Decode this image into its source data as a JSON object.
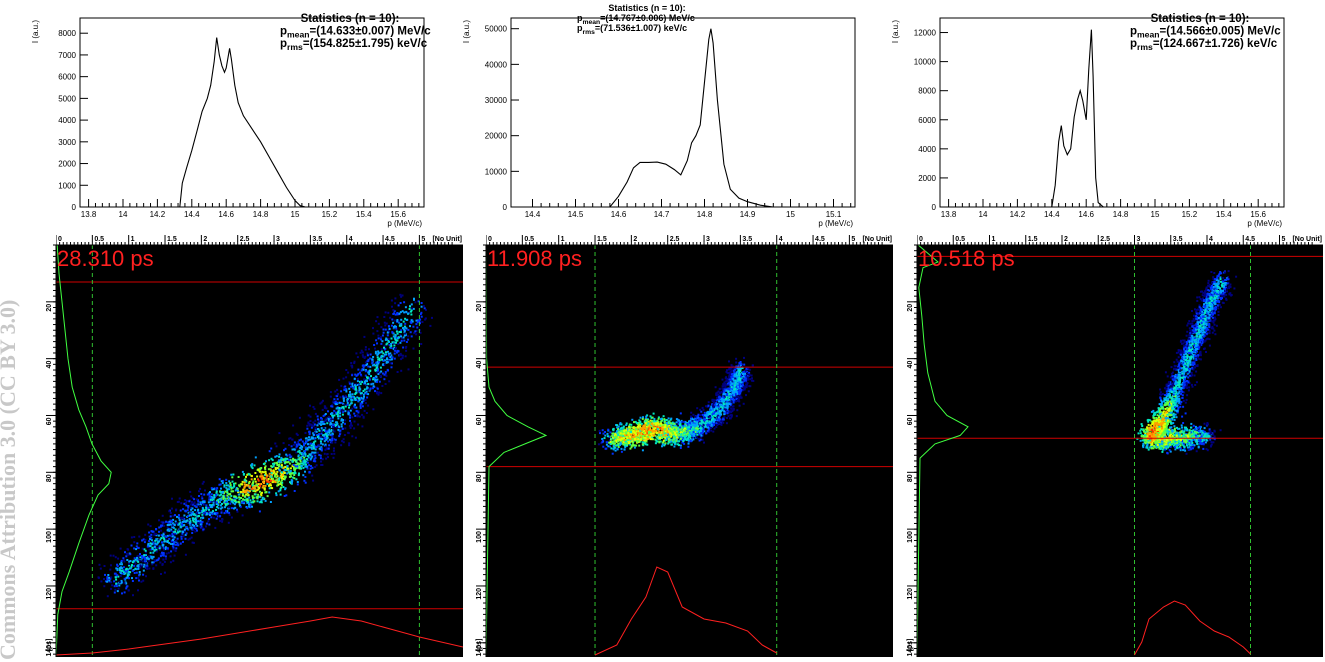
{
  "watermark": "Commons Attribution 3.0 (CC BY 3.0)",
  "chart_data": [
    {
      "type": "line",
      "panel": "top-1",
      "stats_title": "Statistics (n = 10):",
      "stats_mean": "=(14.633±0.007) MeV/c",
      "stats_rms": "=(154.825±1.795) keV/c",
      "xlabel": "p (MeV/c)",
      "ylabel": "I (a.u.)",
      "xlim": [
        13.75,
        15.75
      ],
      "ylim": [
        0,
        8700
      ],
      "xticks": [
        "13.8",
        "14",
        "14.2",
        "14.4",
        "14.6",
        "14.8",
        "15",
        "15.2",
        "15.4",
        "15.6"
      ],
      "yticks": [
        "1000",
        "2000",
        "3000",
        "4000",
        "5000",
        "6000",
        "7000",
        "8000"
      ],
      "series": [
        {
          "x": [
            14.33,
            14.345,
            14.37,
            14.4,
            14.43,
            14.46,
            14.49,
            14.51,
            14.53,
            14.545,
            14.56,
            14.575,
            14.59,
            14.6,
            14.62,
            14.63,
            14.65,
            14.67,
            14.7,
            14.75,
            14.8,
            14.85,
            14.9,
            14.95,
            15.0,
            15.03,
            15.06
          ],
          "y": [
            0,
            1100,
            1800,
            2600,
            3500,
            4400,
            5000,
            5600,
            6700,
            7800,
            7000,
            6500,
            6200,
            6400,
            7300,
            6800,
            5600,
            4800,
            4200,
            3600,
            3000,
            2300,
            1600,
            900,
            300,
            60,
            0
          ]
        }
      ]
    },
    {
      "type": "line",
      "panel": "top-2",
      "stats_title": "Statistics (n = 10):",
      "stats_mean": "=(14.767±0.006) MeV/c",
      "stats_rms": "=(71.536±1.007) keV/c",
      "xlabel": "p (MeV/c)",
      "ylabel": "I (a.u.)",
      "xlim": [
        14.35,
        15.15
      ],
      "ylim": [
        0,
        53000
      ],
      "xticks": [
        "14.4",
        "14.5",
        "14.6",
        "14.7",
        "14.8",
        "14.9",
        "15",
        "15.1"
      ],
      "yticks": [
        "10000",
        "20000",
        "30000",
        "40000",
        "50000"
      ],
      "series": [
        {
          "x": [
            14.58,
            14.6,
            14.62,
            14.635,
            14.65,
            14.67,
            14.69,
            14.71,
            14.73,
            14.745,
            14.76,
            14.77,
            14.78,
            14.79,
            14.8,
            14.81,
            14.815,
            14.82,
            14.83,
            14.845,
            14.86,
            14.88,
            14.9,
            14.93,
            14.96
          ],
          "y": [
            0,
            3000,
            7000,
            11000,
            12500,
            12500,
            12600,
            12000,
            10500,
            9000,
            13000,
            18000,
            20000,
            23000,
            35000,
            47000,
            50000,
            46000,
            30000,
            12000,
            5000,
            2500,
            1500,
            500,
            0
          ]
        }
      ]
    },
    {
      "type": "line",
      "panel": "top-3",
      "stats_title": "Statistics (n = 10):",
      "stats_mean": "=(14.566±0.005) MeV/c",
      "stats_rms": "=(124.667±1.726) keV/c",
      "xlabel": "p (MeV/c)",
      "ylabel": "I (a.u.)",
      "xlim": [
        13.75,
        15.75
      ],
      "ylim": [
        0,
        13000
      ],
      "xticks": [
        "13.8",
        "14",
        "14.2",
        "14.4",
        "14.6",
        "14.8",
        "15",
        "15.2",
        "15.4",
        "15.6"
      ],
      "yticks": [
        "2000",
        "4000",
        "6000",
        "8000",
        "10000",
        "12000"
      ],
      "series": [
        {
          "x": [
            14.4,
            14.42,
            14.44,
            14.455,
            14.47,
            14.49,
            14.51,
            14.53,
            14.55,
            14.565,
            14.58,
            14.6,
            14.615,
            14.63,
            14.64,
            14.655,
            14.67,
            14.7
          ],
          "y": [
            0,
            1500,
            4500,
            5600,
            4200,
            3600,
            4000,
            6200,
            7400,
            8000,
            7300,
            6000,
            9500,
            12200,
            9000,
            2000,
            300,
            0
          ]
        }
      ]
    },
    {
      "type": "heatmap",
      "panel": "bottom-1",
      "time_label": "28.310 ps",
      "xticks": [
        "0",
        "0.5",
        "1",
        "1.5",
        "2",
        "2.5",
        "3",
        "3.5",
        "4",
        "4.5",
        "5"
      ],
      "x_unit": "[No Unit]",
      "yticks": [
        "20",
        "40",
        "60",
        "80",
        "100",
        "120",
        "140"
      ],
      "y_unit": "[ps]",
      "xlim": [
        0,
        5.6
      ],
      "ylim": [
        0,
        145
      ],
      "cut_lines_y": [
        13,
        128
      ],
      "cut_lines_x": [
        0.5,
        5.0
      ],
      "centerline": [
        [
          0.8,
          118
        ],
        [
          1.5,
          102
        ],
        [
          2.2,
          90
        ],
        [
          2.8,
          84
        ],
        [
          3.3,
          76
        ],
        [
          3.8,
          62
        ],
        [
          4.3,
          46
        ],
        [
          4.9,
          22
        ]
      ],
      "hotspot": [
        2.8,
        82
      ],
      "projection_y": [
        [
          0,
          0.02
        ],
        [
          10,
          0.05
        ],
        [
          20,
          0.1
        ],
        [
          30,
          0.15
        ],
        [
          40,
          0.2
        ],
        [
          50,
          0.27
        ],
        [
          58,
          0.38
        ],
        [
          64,
          0.5
        ],
        [
          70,
          0.6
        ],
        [
          76,
          0.75
        ],
        [
          80,
          0.92
        ],
        [
          84,
          0.88
        ],
        [
          88,
          0.7
        ],
        [
          95,
          0.55
        ],
        [
          105,
          0.38
        ],
        [
          115,
          0.22
        ],
        [
          122,
          0.1
        ],
        [
          130,
          0.03
        ],
        [
          145,
          0.0
        ]
      ],
      "projection_x": [
        [
          0.0,
          0.02
        ],
        [
          0.5,
          0.04
        ],
        [
          1.0,
          0.08
        ],
        [
          1.5,
          0.13
        ],
        [
          2.0,
          0.18
        ],
        [
          2.5,
          0.24
        ],
        [
          3.0,
          0.3
        ],
        [
          3.5,
          0.36
        ],
        [
          3.8,
          0.4
        ],
        [
          4.2,
          0.36
        ],
        [
          4.6,
          0.28
        ],
        [
          5.0,
          0.2
        ],
        [
          5.6,
          0.1
        ]
      ]
    },
    {
      "type": "heatmap",
      "panel": "bottom-2",
      "time_label": "11.908 ps",
      "xticks": [
        "0",
        "0.5",
        "1",
        "1.5",
        "2",
        "2.5",
        "3",
        "3.5",
        "4",
        "4.5",
        "5"
      ],
      "x_unit": "[No Unit]",
      "yticks": [
        "20",
        "40",
        "60",
        "80",
        "100",
        "120",
        "140"
      ],
      "y_unit": "[ps]",
      "xlim": [
        0,
        5.6
      ],
      "ylim": [
        0,
        145
      ],
      "cut_lines_y": [
        43,
        78
      ],
      "cut_lines_x": [
        1.5,
        4.0
      ],
      "centerline": [
        [
          1.7,
          68
        ],
        [
          2.0,
          67
        ],
        [
          2.3,
          64
        ],
        [
          2.6,
          66
        ],
        [
          2.9,
          64
        ],
        [
          3.2,
          58
        ],
        [
          3.4,
          50
        ],
        [
          3.5,
          44
        ]
      ],
      "hotspot": [
        2.2,
        66
      ],
      "projection_y": [
        [
          0,
          0.0
        ],
        [
          40,
          0.01
        ],
        [
          50,
          0.05
        ],
        [
          55,
          0.15
        ],
        [
          60,
          0.35
        ],
        [
          64,
          0.7
        ],
        [
          67,
          1.0
        ],
        [
          70,
          0.65
        ],
        [
          73,
          0.3
        ],
        [
          78,
          0.05
        ],
        [
          145,
          0.0
        ]
      ],
      "projection_x": [
        [
          1.5,
          0.02
        ],
        [
          1.8,
          0.12
        ],
        [
          2.0,
          0.38
        ],
        [
          2.2,
          0.6
        ],
        [
          2.35,
          0.9
        ],
        [
          2.5,
          0.85
        ],
        [
          2.7,
          0.5
        ],
        [
          3.0,
          0.38
        ],
        [
          3.3,
          0.34
        ],
        [
          3.6,
          0.26
        ],
        [
          3.8,
          0.12
        ],
        [
          4.0,
          0.04
        ]
      ]
    },
    {
      "type": "heatmap",
      "panel": "bottom-3",
      "time_label": "10.518 ps",
      "xticks": [
        "0",
        "0.5",
        "1",
        "1.5",
        "2",
        "2.5",
        "3",
        "3.5",
        "4",
        "4.5",
        "5"
      ],
      "x_unit": "[No Unit]",
      "yticks": [
        "20",
        "40",
        "60",
        "80",
        "100",
        "120",
        "140"
      ],
      "y_unit": "[ps]",
      "xlim": [
        0,
        5.6
      ],
      "ylim": [
        0,
        145
      ],
      "cut_lines_y": [
        4,
        68
      ],
      "cut_lines_x": [
        3.0,
        4.6
      ],
      "centerline": [
        [
          4.2,
          12
        ],
        [
          4.0,
          22
        ],
        [
          3.8,
          35
        ],
        [
          3.6,
          48
        ],
        [
          3.4,
          60
        ],
        [
          3.2,
          68
        ],
        [
          3.6,
          68
        ],
        [
          4.0,
          67
        ]
      ],
      "hotspot": [
        3.2,
        64
      ],
      "projection_y": [
        [
          0,
          0.02
        ],
        [
          6,
          0.35
        ],
        [
          8,
          0.1
        ],
        [
          15,
          0.03
        ],
        [
          25,
          0.08
        ],
        [
          35,
          0.12
        ],
        [
          45,
          0.18
        ],
        [
          55,
          0.3
        ],
        [
          60,
          0.5
        ],
        [
          64,
          0.85
        ],
        [
          67,
          0.72
        ],
        [
          70,
          0.3
        ],
        [
          75,
          0.05
        ],
        [
          145,
          0.0
        ]
      ],
      "projection_x": [
        [
          3.0,
          0.02
        ],
        [
          3.1,
          0.15
        ],
        [
          3.2,
          0.38
        ],
        [
          3.4,
          0.5
        ],
        [
          3.55,
          0.56
        ],
        [
          3.7,
          0.52
        ],
        [
          3.9,
          0.36
        ],
        [
          4.1,
          0.26
        ],
        [
          4.3,
          0.2
        ],
        [
          4.5,
          0.1
        ],
        [
          4.6,
          0.03
        ]
      ]
    }
  ]
}
